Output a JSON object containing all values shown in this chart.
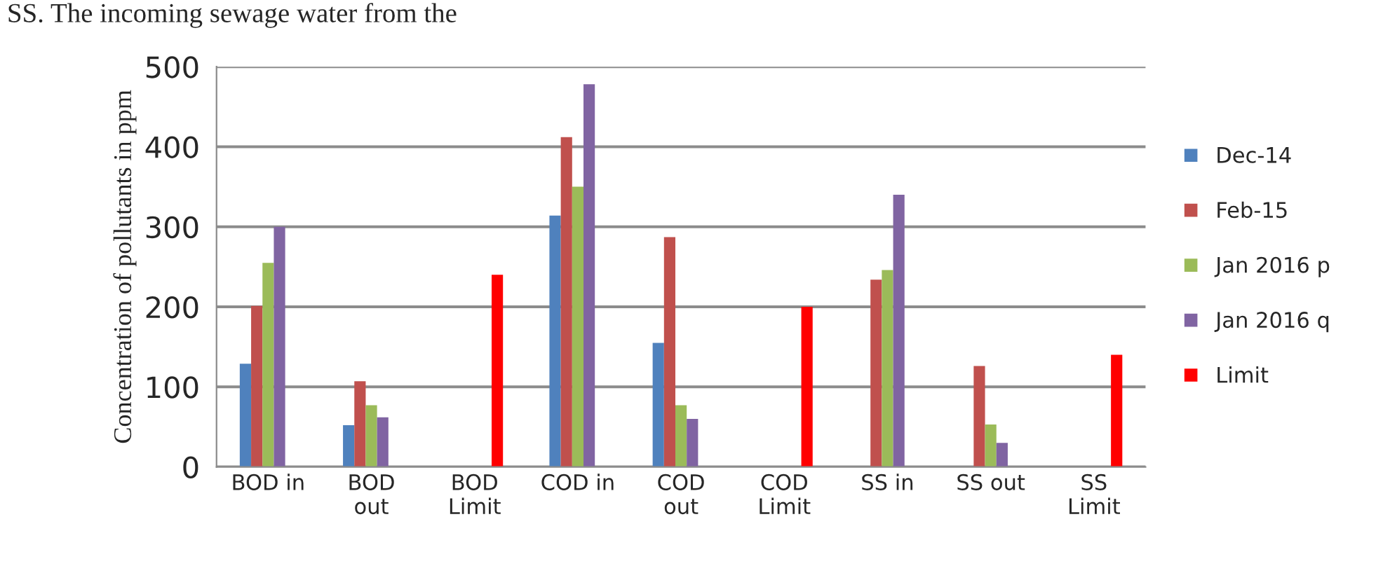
{
  "chart_data": {
    "type": "bar",
    "ylabel": "Concentration of pollutants in ppm",
    "annotations": [
      "SS. The incoming sewage water from the"
    ],
    "categories": [
      "BOD in",
      "BOD\nout",
      "BOD\nLimit",
      "COD in",
      "COD\nout",
      "COD\nLimit",
      "SS in",
      "SS out",
      "SS\nLimit"
    ],
    "series": [
      {
        "name": "Dec-14",
        "color": "#4f81bd",
        "values": [
          129,
          52,
          null,
          314,
          155,
          null,
          null,
          null,
          null
        ]
      },
      {
        "name": "Feb-15",
        "color": "#c0504d",
        "values": [
          201,
          107,
          null,
          412,
          287,
          null,
          234,
          126,
          null
        ]
      },
      {
        "name": "Jan 2016 p",
        "color": "#9bbb59",
        "values": [
          255,
          77,
          null,
          350,
          77,
          null,
          246,
          53,
          null
        ]
      },
      {
        "name": "Jan 2016 q",
        "color": "#8064a2",
        "values": [
          300,
          62,
          null,
          478,
          60,
          null,
          340,
          30,
          null
        ]
      },
      {
        "name": "Limit",
        "color": "#ff0000",
        "values": [
          null,
          null,
          240,
          null,
          null,
          200,
          null,
          null,
          140
        ]
      }
    ],
    "ylim": [
      0,
      500
    ],
    "yticks": [
      0,
      100,
      200,
      300,
      400,
      500
    ],
    "grid": "y",
    "legend": "right"
  }
}
